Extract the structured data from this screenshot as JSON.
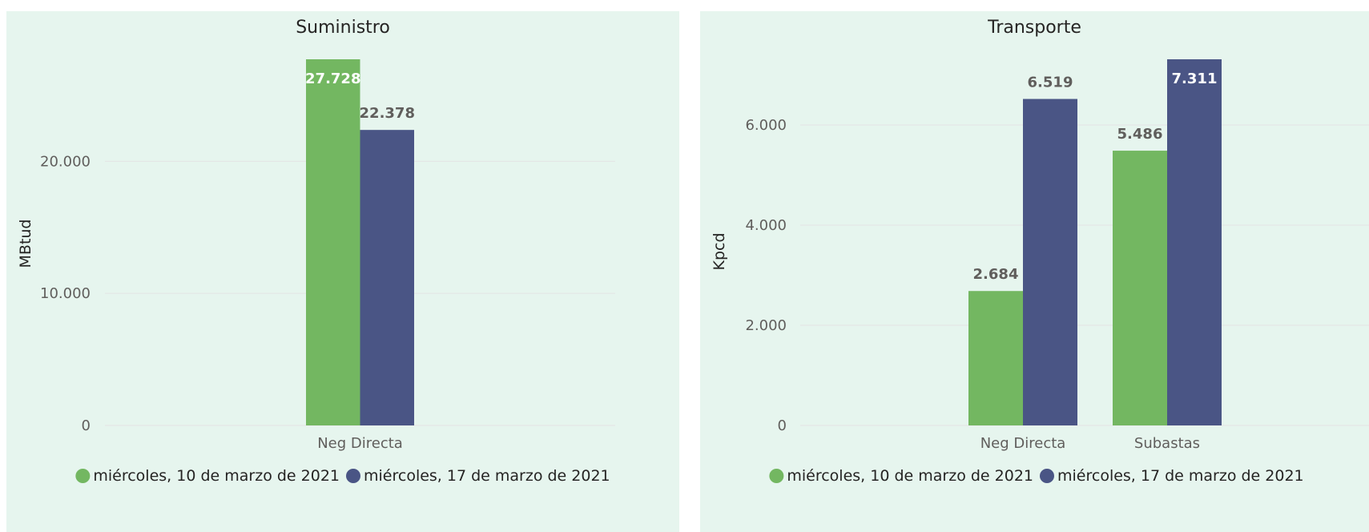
{
  "colors": {
    "series1": "#73b761",
    "series2": "#4a5585",
    "label_outside": "#605e5c",
    "label_inside": "#ffffff"
  },
  "chart_data": [
    {
      "type": "bar",
      "title": "Suministro",
      "ylabel": "MBtud",
      "xlabel": "",
      "categories": [
        "Neg Directa"
      ],
      "series": [
        {
          "name": "miércoles, 10 de marzo de 2021",
          "values": [
            27728
          ]
        },
        {
          "name": "miércoles, 17 de marzo de 2021",
          "values": [
            22378
          ]
        }
      ],
      "data_labels": [
        [
          "27.728"
        ],
        [
          "22.378"
        ]
      ],
      "y_ticks": [
        0,
        10000,
        20000
      ],
      "y_tick_labels": [
        "0",
        "10.000",
        "20.000"
      ],
      "ylim": [
        0,
        27728
      ],
      "grid": true,
      "legend": "bottom"
    },
    {
      "type": "bar",
      "title": "Transporte",
      "ylabel": "Kpcd",
      "xlabel": "",
      "categories": [
        "Neg Directa",
        "Subastas"
      ],
      "series": [
        {
          "name": "miércoles, 10 de marzo de 2021",
          "values": [
            2684,
            5486
          ]
        },
        {
          "name": "miércoles, 17 de marzo de 2021",
          "values": [
            6519,
            7311
          ]
        }
      ],
      "data_labels": [
        [
          "2.684",
          "5.486"
        ],
        [
          "6.519",
          "7.311"
        ]
      ],
      "y_ticks": [
        0,
        2000,
        4000,
        6000
      ],
      "y_tick_labels": [
        "0",
        "2.000",
        "4.000",
        "6.000"
      ],
      "ylim": [
        0,
        7311
      ],
      "grid": true,
      "legend": "bottom"
    }
  ]
}
